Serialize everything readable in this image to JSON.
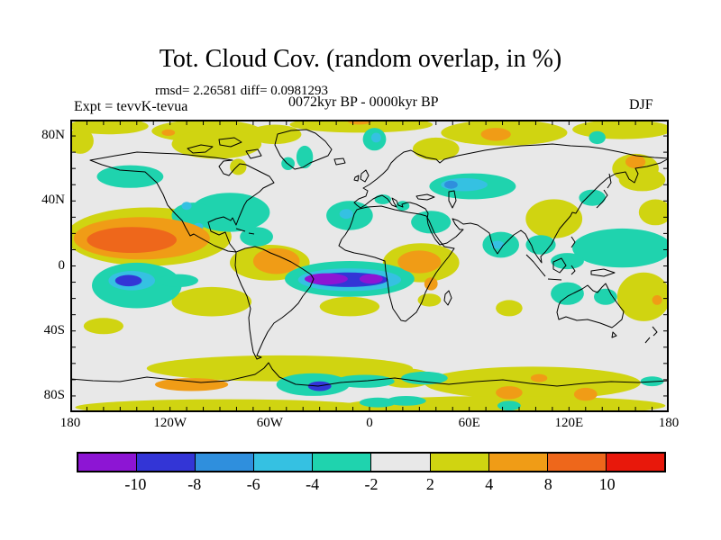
{
  "header": {
    "title": "Tot. Cloud Cov. (random overlap, in %)",
    "stats_line": "rmsd= 2.26581 diff= 0.0981293",
    "period_line": "0072kyr BP - 0000kyr BP",
    "experiment_label": "Expt = tevvK-tevua",
    "season_label": "DJF"
  },
  "chart_data": {
    "type": "heatmap",
    "subtype": "filled-contour anomaly map on equirectangular world projection",
    "title": "Tot. Cloud Cov. (random overlap, in %)",
    "season": "DJF",
    "period": "0072kyr BP - 0000kyr BP",
    "experiment": "tevvK-tevua",
    "rmsd": 2.26581,
    "diff": 0.0981293,
    "units": "%",
    "lon_range": [
      -180,
      180
    ],
    "lat_range": [
      -90,
      90
    ],
    "minor_tick_interval_deg": 10,
    "background_color": "#e8e8e8",
    "x_ticks": [
      {
        "label": "180",
        "lon": -180
      },
      {
        "label": "120W",
        "lon": -120
      },
      {
        "label": "60W",
        "lon": -60
      },
      {
        "label": "0",
        "lon": 0
      },
      {
        "label": "60E",
        "lon": 60
      },
      {
        "label": "120E",
        "lon": 120
      },
      {
        "label": "180",
        "lon": 180
      }
    ],
    "y_ticks": [
      {
        "label": "80N",
        "lat": 80
      },
      {
        "label": "40N",
        "lat": 40
      },
      {
        "label": "0",
        "lat": 0
      },
      {
        "label": "40S",
        "lat": -40
      },
      {
        "label": "80S",
        "lat": -80
      }
    ],
    "colorbar": {
      "levels_labels": [
        "-10",
        "-8",
        "-6",
        "-4",
        "-2",
        "2",
        "4",
        "8",
        "10"
      ],
      "segment_colors": [
        "#8d15d4",
        "#3335d6",
        "#2f8fdd",
        "#35c1e2",
        "#1fd3ae",
        "#e8e8e8",
        "#d0d411",
        "#f09c16",
        "#ee671b",
        "#e8180b"
      ],
      "segment_meanings": [
        "< -10",
        "-10 to -8",
        "-8 to -6",
        "-6 to -4",
        "-4 to -2",
        "-2 to 2",
        "2 to 4",
        "4 to 8",
        "8 to 10",
        "> 10"
      ]
    },
    "anomalies": [
      {
        "lon": -133,
        "lat": 18,
        "rlon": 50,
        "rlat": 18,
        "level": 6
      },
      {
        "lon": -157,
        "lat": 86,
        "rlon": 24,
        "rlat": 5,
        "level": 6
      },
      {
        "lon": -98,
        "lat": 83,
        "rlon": 33,
        "rlat": 7,
        "level": 6
      },
      {
        "lon": -5,
        "lat": 87,
        "rlon": 43,
        "rlat": 5,
        "level": 6
      },
      {
        "lon": 81,
        "lat": 82,
        "rlon": 38,
        "rlat": 8,
        "level": 6
      },
      {
        "lon": 152,
        "lat": 84,
        "rlon": 30,
        "rlat": 6,
        "level": 6
      },
      {
        "lon": -92,
        "lat": 75,
        "rlon": 27,
        "rlat": 9,
        "level": 6
      },
      {
        "lon": -57,
        "lat": 81,
        "rlon": 16,
        "rlat": 6,
        "level": 6
      },
      {
        "lon": 40,
        "lat": 72,
        "rlon": 14,
        "rlat": 7,
        "level": 6
      },
      {
        "lon": 160,
        "lat": 60,
        "rlon": 14,
        "rlat": 9,
        "level": 6
      },
      {
        "lon": 164,
        "lat": 53,
        "rlon": 14,
        "rlat": 7,
        "level": 6
      },
      {
        "lon": 172,
        "lat": 33,
        "rlon": 10,
        "rlat": 8,
        "level": 6
      },
      {
        "lon": 111,
        "lat": 29,
        "rlon": 17,
        "rlat": 12,
        "level": 6
      },
      {
        "lon": -79,
        "lat": 61,
        "rlon": 5,
        "rlat": 5,
        "level": 6
      },
      {
        "lon": -174,
        "lat": 77,
        "rlon": 8,
        "rlat": 8,
        "level": 6
      },
      {
        "lon": -60,
        "lat": 2,
        "rlon": 24,
        "rlat": 11,
        "level": 6
      },
      {
        "lon": 31,
        "lat": 2,
        "rlon": 23,
        "rlat": 12,
        "level": 6
      },
      {
        "lon": 165,
        "lat": -19,
        "rlon": 16,
        "rlat": 15,
        "level": 6
      },
      {
        "lon": -95,
        "lat": -22,
        "rlon": 24,
        "rlat": 9,
        "level": 6
      },
      {
        "lon": -160,
        "lat": -37,
        "rlon": 12,
        "rlat": 5,
        "level": 6
      },
      {
        "lon": -12,
        "lat": -25,
        "rlon": 18,
        "rlat": 6,
        "level": 6
      },
      {
        "lon": 36,
        "lat": -21,
        "rlon": 7,
        "rlat": 4,
        "level": 6
      },
      {
        "lon": 84,
        "lat": -26,
        "rlon": 8,
        "rlat": 5,
        "level": 6
      },
      {
        "lon": -54,
        "lat": -63,
        "rlon": 80,
        "rlat": 8,
        "level": 6
      },
      {
        "lon": 98,
        "lat": -72,
        "rlon": 65,
        "rlat": 10,
        "level": 6
      },
      {
        "lon": -87,
        "lat": -87,
        "rlon": 90,
        "rlat": 5,
        "level": 6
      },
      {
        "lon": 81,
        "lat": -86,
        "rlon": 97,
        "rlat": 6,
        "level": 6
      },
      {
        "lon": 22,
        "lat": -69,
        "rlon": 16,
        "rlat": 6,
        "level": 6
      },
      {
        "lon": -144,
        "lat": 55,
        "rlon": 20,
        "rlat": 7,
        "level": 4
      },
      {
        "lon": -84,
        "lat": 33,
        "rlon": 24,
        "rlat": 12,
        "level": 4
      },
      {
        "lon": -106,
        "lat": 31,
        "rlon": 13,
        "rlat": 8,
        "level": 4
      },
      {
        "lon": -68,
        "lat": 18,
        "rlon": 10,
        "rlat": 6,
        "level": 4
      },
      {
        "lon": -12,
        "lat": 31,
        "rlon": 14,
        "rlat": 9,
        "level": 4
      },
      {
        "lon": 3,
        "lat": 78,
        "rlon": 7,
        "rlat": 7,
        "level": 4
      },
      {
        "lon": -39,
        "lat": 67,
        "rlon": 5,
        "rlat": 7,
        "level": 4
      },
      {
        "lon": -49,
        "lat": 63,
        "rlon": 4,
        "rlat": 4,
        "level": 4
      },
      {
        "lon": 8,
        "lat": 41,
        "rlon": 5,
        "rlat": 3,
        "level": 4
      },
      {
        "lon": 20,
        "lat": 37,
        "rlon": 4,
        "rlat": 3,
        "level": 4
      },
      {
        "lon": 37,
        "lat": 27,
        "rlon": 12,
        "rlat": 7,
        "level": 4
      },
      {
        "lon": 79,
        "lat": 13,
        "rlon": 11,
        "rlat": 8,
        "level": 4
      },
      {
        "lon": 103,
        "lat": 13,
        "rlon": 9,
        "rlat": 6,
        "level": 4
      },
      {
        "lon": 152,
        "lat": 11,
        "rlon": 30,
        "rlat": 12,
        "level": 4
      },
      {
        "lon": 119,
        "lat": 3,
        "rlon": 10,
        "rlat": 5,
        "level": 4
      },
      {
        "lon": 134,
        "lat": 42,
        "rlon": 8,
        "rlat": 5,
        "level": 4
      },
      {
        "lon": 137,
        "lat": 79,
        "rlon": 5,
        "rlat": 4,
        "level": 4
      },
      {
        "lon": 62,
        "lat": 49,
        "rlon": 26,
        "rlat": 8,
        "level": 4
      },
      {
        "lon": -12,
        "lat": -8,
        "rlon": 39,
        "rlat": 11,
        "level": 4
      },
      {
        "lon": -140,
        "lat": -12,
        "rlon": 27,
        "rlat": 14,
        "level": 4
      },
      {
        "lon": -115,
        "lat": -9,
        "rlon": 12,
        "rlat": 4,
        "level": 4
      },
      {
        "lon": 119,
        "lat": -17,
        "rlon": 10,
        "rlat": 7,
        "level": 4
      },
      {
        "lon": 142,
        "lat": -19,
        "rlon": 7,
        "rlat": 5,
        "level": 4
      },
      {
        "lon": -34,
        "lat": -73,
        "rlon": 22,
        "rlat": 7,
        "level": 4
      },
      {
        "lon": 33,
        "lat": -69,
        "rlon": 14,
        "rlat": 4,
        "level": 4
      },
      {
        "lon": -3,
        "lat": -71,
        "rlon": 18,
        "rlat": 4,
        "level": 4
      },
      {
        "lon": 5,
        "lat": -84,
        "rlon": 11,
        "rlat": 3,
        "level": 4
      },
      {
        "lon": 22,
        "lat": -83,
        "rlon": 12,
        "rlat": 3,
        "level": 4
      },
      {
        "lon": 84,
        "lat": -86,
        "rlon": 7,
        "rlat": 3,
        "level": 4
      },
      {
        "lon": 170,
        "lat": -71,
        "rlon": 7,
        "rlat": 3,
        "level": 4
      },
      {
        "lon": -12,
        "lat": -8.5,
        "rlon": 31,
        "rlat": 7,
        "level": 3
      },
      {
        "lon": -143,
        "lat": -9,
        "rlon": 14,
        "rlat": 6,
        "level": 3
      },
      {
        "lon": 57,
        "lat": 50,
        "rlon": 14,
        "rlat": 4,
        "level": 3
      },
      {
        "lon": -110,
        "lat": 37,
        "rlon": 3,
        "rlat": 2.5,
        "level": 3
      },
      {
        "lon": -103,
        "lat": 24,
        "rlon": 3,
        "rlat": 2.5,
        "level": 3
      },
      {
        "lon": -14,
        "lat": 32,
        "rlon": 4,
        "rlat": 3,
        "level": 3
      },
      {
        "lon": 77,
        "lat": 13,
        "rlon": 4,
        "rlat": 2.5,
        "level": 3
      },
      {
        "lon": 4,
        "lat": 79,
        "rlon": 3,
        "rlat": 3,
        "level": 3
      },
      {
        "lon": -137,
        "lat": 17,
        "rlon": 41,
        "rlat": 13,
        "level": 7
      },
      {
        "lon": -56,
        "lat": 3,
        "rlon": 14,
        "rlat": 8,
        "level": 7
      },
      {
        "lon": 30,
        "lat": 2.5,
        "rlon": 13,
        "rlat": 7,
        "level": 7
      },
      {
        "lon": 37,
        "lat": -11,
        "rlon": 4,
        "rlat": 4,
        "level": 7
      },
      {
        "lon": -6,
        "lat": 89,
        "rlon": 7,
        "rlat": 2,
        "level": 7
      },
      {
        "lon": 76,
        "lat": 81,
        "rlon": 9,
        "rlat": 4,
        "level": 7
      },
      {
        "lon": -121,
        "lat": 82,
        "rlon": 4,
        "rlat": 2,
        "level": 7
      },
      {
        "lon": 160,
        "lat": 64,
        "rlon": 6,
        "rlat": 4,
        "level": 7
      },
      {
        "lon": 173,
        "lat": -21,
        "rlon": 3,
        "rlat": 3,
        "level": 7
      },
      {
        "lon": -107,
        "lat": -73,
        "rlon": 22,
        "rlat": 4,
        "level": 7
      },
      {
        "lon": 84,
        "lat": -78,
        "rlon": 8,
        "rlat": 4,
        "level": 7
      },
      {
        "lon": 130,
        "lat": -79,
        "rlon": 7,
        "rlat": 4,
        "level": 7
      },
      {
        "lon": 102,
        "lat": -69,
        "rlon": 5,
        "rlat": 2.5,
        "level": 7
      },
      {
        "lon": -143,
        "lat": 16,
        "rlon": 27,
        "rlat": 8,
        "level": 8
      },
      {
        "lon": -13,
        "lat": -8.5,
        "rlon": 24,
        "rlat": 4.5,
        "level": 1
      },
      {
        "lon": -145,
        "lat": -9,
        "rlon": 8,
        "rlat": 3.5,
        "level": 1
      },
      {
        "lon": -30,
        "lat": -74,
        "rlon": 7,
        "rlat": 3,
        "level": 1
      },
      {
        "lon": 49,
        "lat": 50,
        "rlon": 4,
        "rlat": 2.5,
        "level": 2
      },
      {
        "lon": -26,
        "lat": -8,
        "rlon": 13,
        "rlat": 3.5,
        "level": 0
      },
      {
        "lon": 1,
        "lat": -8,
        "rlon": 7,
        "rlat": 3,
        "level": 0
      }
    ]
  }
}
